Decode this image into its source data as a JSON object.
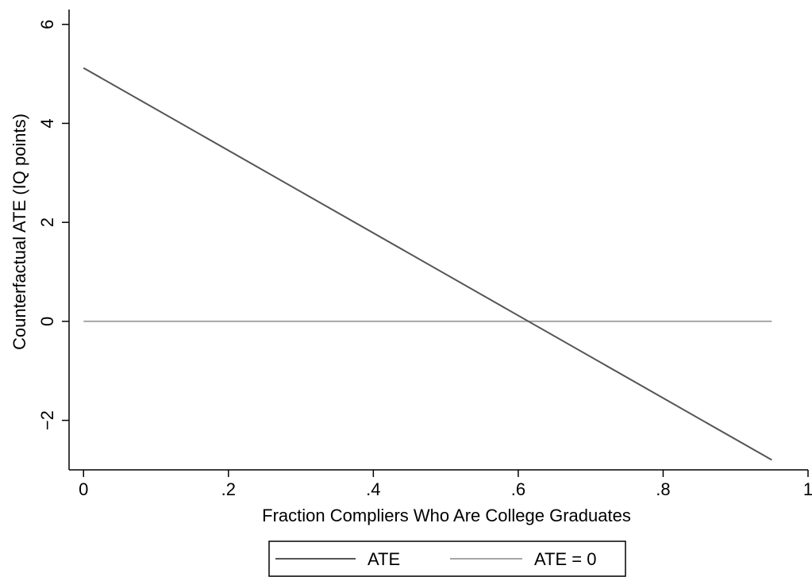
{
  "chart_data": {
    "type": "line",
    "xlabel": "Fraction Compliers Who Are College Graduates",
    "ylabel": "Counterfactual ATE (IQ points)",
    "xlim": [
      -0.02,
      1.0
    ],
    "ylim": [
      -3.0,
      6.3
    ],
    "xticks": [
      0,
      0.2,
      0.4,
      0.6,
      0.8,
      1
    ],
    "xtick_labels": [
      "0",
      ".2",
      ".4",
      ".6",
      ".8",
      "1"
    ],
    "yticks": [
      -2,
      0,
      2,
      4,
      6
    ],
    "ytick_labels": [
      "−2",
      "0",
      "2",
      "4",
      "6"
    ],
    "grid": false,
    "legend_position": "bottom",
    "series": [
      {
        "name": "ATE",
        "color": "#555555",
        "x": [
          0,
          0.95
        ],
        "y": [
          5.12,
          -2.8
        ]
      },
      {
        "name": "ATE = 0",
        "color": "#a6a6a6",
        "x": [
          0,
          0.95
        ],
        "y": [
          0,
          0
        ]
      }
    ]
  }
}
